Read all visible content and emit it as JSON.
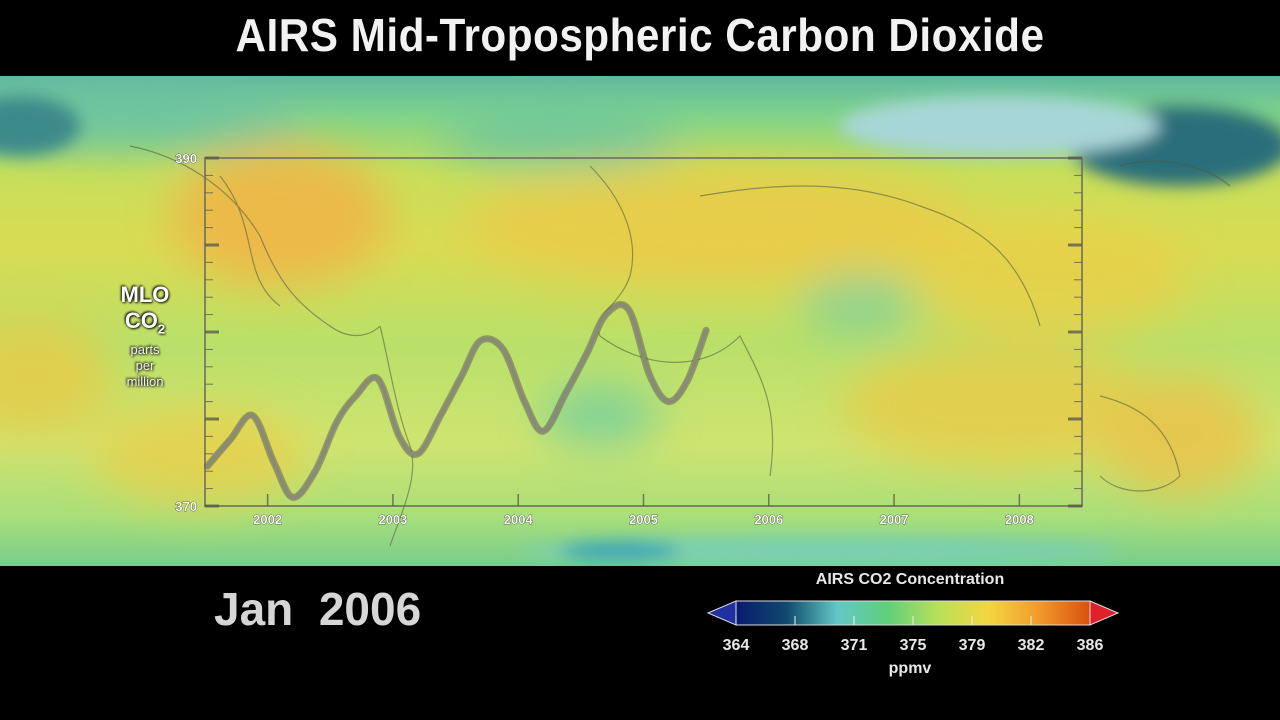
{
  "title": "AIRS Mid-Tropospheric Carbon Dioxide",
  "date_label": "Jan  2006",
  "mlo_label": {
    "line1": "MLO",
    "line2_main": "CO",
    "line2_sub": "2",
    "line3": "parts",
    "line4": "per",
    "line5": "million"
  },
  "colorbar": {
    "title": "AIRS CO2 Concentration",
    "unit": "ppmv",
    "ticks": [
      "364",
      "368",
      "371",
      "375",
      "379",
      "382",
      "386"
    ],
    "colors": [
      "#0a1a6e",
      "#0f4a6e",
      "#63c7c4",
      "#5fd07a",
      "#b9e05a",
      "#f2d640",
      "#f09a2c",
      "#d8500e"
    ],
    "under_color": "#2030a0",
    "over_color": "#e0202a"
  },
  "chart_data": {
    "type": "line",
    "title": "",
    "xlabel": "",
    "ylabel": "MLO CO2 parts per million",
    "ylim": [
      370,
      390
    ],
    "xlim": [
      2001.5,
      2008.5
    ],
    "y_tick_labels": [
      "390",
      "370"
    ],
    "x_tick_labels": [
      "2002",
      "2003",
      "2004",
      "2005",
      "2006",
      "2007",
      "2008"
    ],
    "series": [
      {
        "x": [
          2001.52,
          2001.7,
          2001.88,
          2002.05,
          2002.2,
          2002.38,
          2002.55,
          2002.7,
          2002.88,
          2003.05,
          2003.2,
          2003.38,
          2003.55,
          2003.7,
          2003.88,
          2004.05,
          2004.2,
          2004.38,
          2004.55,
          2004.7,
          2004.88,
          2005.05,
          2005.2,
          2005.35,
          2005.5
        ],
        "y": [
          372.3,
          373.8,
          375.2,
          372.5,
          370.5,
          372.0,
          374.8,
          376.3,
          377.3,
          374.0,
          373.0,
          375.2,
          377.5,
          379.5,
          379.0,
          376.0,
          374.3,
          376.5,
          378.8,
          381.0,
          381.3,
          377.5,
          376.0,
          377.2,
          380.1
        ]
      }
    ],
    "line_color": "#8a8a78"
  }
}
